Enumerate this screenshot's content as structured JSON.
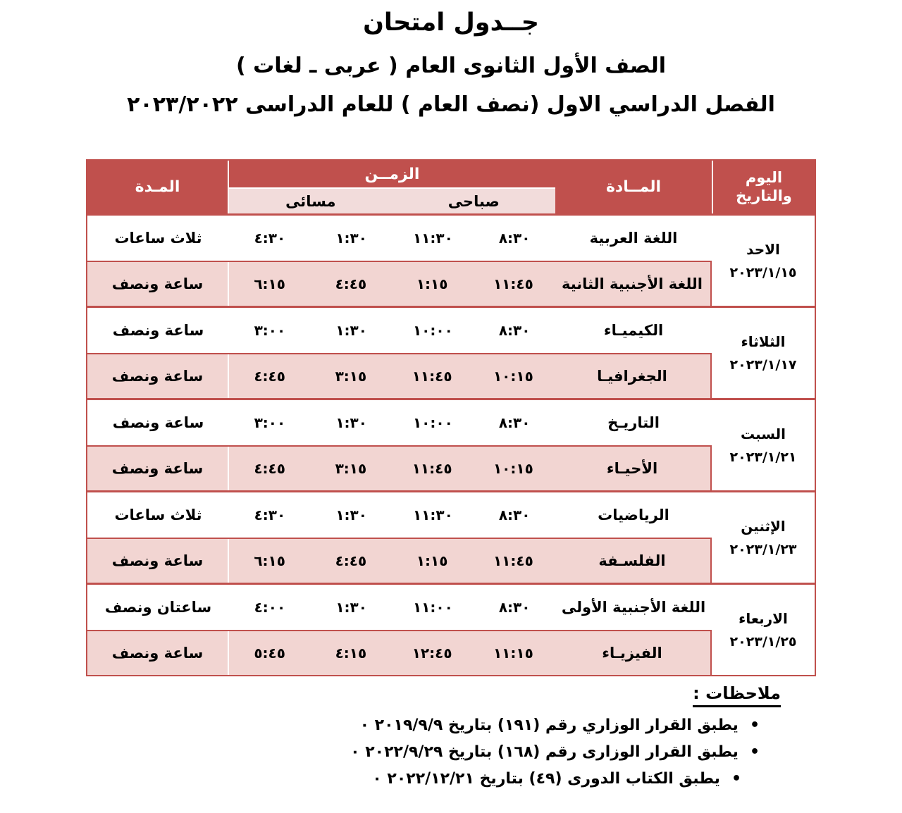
{
  "titles": {
    "line1": "جــدول امتحان",
    "line2": "الصف الأول الثانوى العام ( عربى ـ لغات )",
    "line3": "الفصل الدراسي الاول (نصف العام ) للعام الدراسى ٢٠٢٣/٢٠٢٢"
  },
  "table": {
    "headers": {
      "day_line1": "اليوم",
      "day_line2": "والتاريخ",
      "subject": "المــادة",
      "time": "الزمــن",
      "morning": "صباحى",
      "evening": "مسائى",
      "duration": "المـدة"
    },
    "groups": [
      {
        "day": "الاحد",
        "date": "٢٠٢٣/١/١٥",
        "rows": [
          {
            "subject": "اللغة العربية",
            "times": [
              "٨:٣٠",
              "١١:٣٠",
              "١:٣٠",
              "٤:٣٠"
            ],
            "duration": "ثلاث ساعات"
          },
          {
            "subject": "اللغة الأجنبية الثانية",
            "times": [
              "١١:٤٥",
              "١:١٥",
              "٤:٤٥",
              "٦:١٥"
            ],
            "duration": "ساعة ونصف"
          }
        ]
      },
      {
        "day": "الثلاثاء",
        "date": "٢٠٢٣/١/١٧",
        "rows": [
          {
            "subject": "الكيميـاء",
            "times": [
              "٨:٣٠",
              "١٠:٠٠",
              "١:٣٠",
              "٣:٠٠"
            ],
            "duration": "ساعة ونصف"
          },
          {
            "subject": "الجغرافيـا",
            "times": [
              "١٠:١٥",
              "١١:٤٥",
              "٣:١٥",
              "٤:٤٥"
            ],
            "duration": "ساعة ونصف"
          }
        ]
      },
      {
        "day": "السبت",
        "date": "٢٠٢٣/١/٢١",
        "rows": [
          {
            "subject": "التاريـخ",
            "times": [
              "٨:٣٠",
              "١٠:٠٠",
              "١:٣٠",
              "٣:٠٠"
            ],
            "duration": "ساعة ونصف"
          },
          {
            "subject": "الأحيـاء",
            "times": [
              "١٠:١٥",
              "١١:٤٥",
              "٣:١٥",
              "٤:٤٥"
            ],
            "duration": "ساعة ونصف"
          }
        ]
      },
      {
        "day": "الإثنين",
        "date": "٢٠٢٣/١/٢٣",
        "rows": [
          {
            "subject": "الرياضيات",
            "times": [
              "٨:٣٠",
              "١١:٣٠",
              "١:٣٠",
              "٤:٣٠"
            ],
            "duration": "ثلاث ساعات"
          },
          {
            "subject": "الفلسـفة",
            "times": [
              "١١:٤٥",
              "١:١٥",
              "٤:٤٥",
              "٦:١٥"
            ],
            "duration": "ساعة ونصف"
          }
        ]
      },
      {
        "day": "الاربعاء",
        "date": "٢٠٢٣/١/٢٥",
        "rows": [
          {
            "subject": "اللغة الأجنبية الأولى",
            "times": [
              "٨:٣٠",
              "١١:٠٠",
              "١:٣٠",
              "٤:٠٠"
            ],
            "duration": "ساعتان ونصف"
          },
          {
            "subject": "الفيزيـاء",
            "times": [
              "١١:١٥",
              "١٢:٤٥",
              "٤:١٥",
              "٥:٤٥"
            ],
            "duration": "ساعة ونصف"
          }
        ]
      }
    ]
  },
  "notes": {
    "heading": "ملاحظات :",
    "bullet": "•",
    "items": [
      "يطبق القرار الوزاري رقم (١٩١) بتاريخ ٢٠١٩/٩/٩ ٠",
      "يطبق القرار الوزارى رقم (١٦٨) بتاريخ ٢٠٢٢/٩/٢٩ ٠",
      "يطبق الكتاب الدورى (٤٩) بتاريخ ٢٠٢٢/١٢/٢١ ٠"
    ]
  },
  "colors": {
    "header_red": "#C0504D",
    "subheader_pink": "#F2DCDB",
    "row_pink": "#F2D5D2",
    "text": "#000000",
    "header_text": "#FFFFFF"
  }
}
